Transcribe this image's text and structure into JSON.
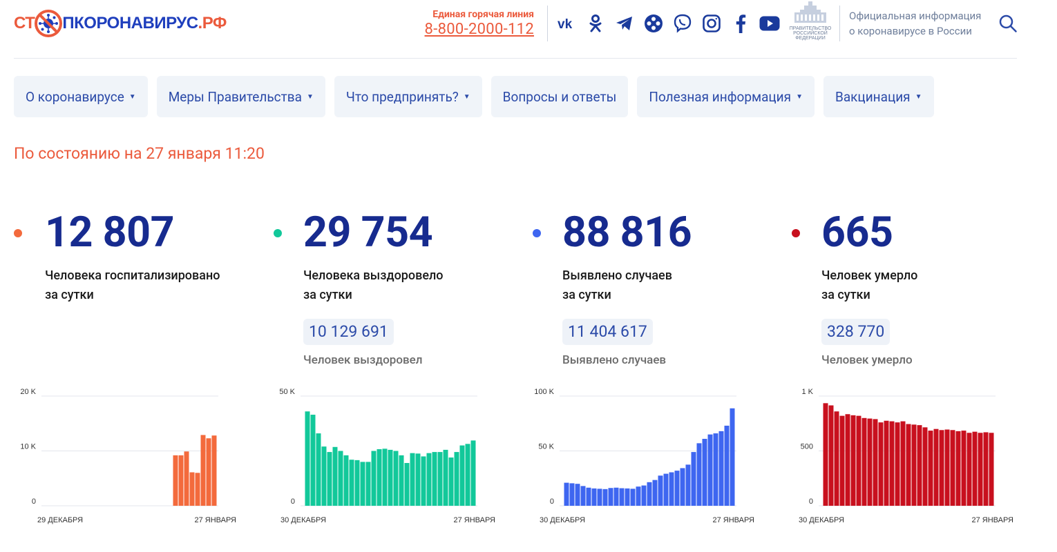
{
  "header": {
    "logo": {
      "part_red": "СТ",
      "part_blue": "ПКОРОНАВИРУС",
      "part_red_end": ".РФ"
    },
    "hotline": {
      "label": "Единая горячая линия",
      "phone": "8-800-2000-112"
    },
    "social_icons": [
      "vk-icon",
      "odnoklassniki-icon",
      "telegram-icon",
      "yandex-zen-icon",
      "viber-icon",
      "instagram-icon",
      "facebook-icon",
      "youtube-icon"
    ],
    "gov_logo_text": [
      "ПРАВИТЕЛЬСТВО",
      "РОССИЙСКОЙ",
      "ФЕДЕРАЦИИ"
    ],
    "official": {
      "line1": "Официальная информация",
      "line2": "о коронавирусе в России"
    }
  },
  "nav": {
    "items": [
      {
        "label": "О коронавирусе",
        "has_dropdown": true
      },
      {
        "label": "Меры Правительства",
        "has_dropdown": true
      },
      {
        "label": "Что предпринять?",
        "has_dropdown": true
      },
      {
        "label": "Вопросы и ответы",
        "has_dropdown": false
      },
      {
        "label": "Полезная информация",
        "has_dropdown": true
      },
      {
        "label": "Вакцинация",
        "has_dropdown": true
      }
    ]
  },
  "status": "По состоянию на 27 января 11:20",
  "stats": [
    {
      "value": "12 807",
      "desc1": "Человека госпитализировано",
      "desc2": "за сутки",
      "total": "",
      "total_label": ""
    },
    {
      "value": "29 754",
      "desc1": "Человека выздоровело",
      "desc2": "за сутки",
      "total": "10 129 691",
      "total_label": "Человек выздоровел"
    },
    {
      "value": "88 816",
      "desc1": "Выявлено случаев",
      "desc2": "за сутки",
      "total": "11 404 617",
      "total_label": "Выявлено случаев"
    },
    {
      "value": "665",
      "desc1": "Человек умерло",
      "desc2": "за сутки",
      "total": "328 770",
      "total_label": "Человек умерло"
    }
  ],
  "colors": {
    "hospitalized": "#f36a3c",
    "recovered": "#12c89a",
    "cases": "#3e66f0",
    "deaths": "#c8101e",
    "brand_red": "#eb5a3c",
    "brand_blue": "#172b8f"
  },
  "chart_data": [
    {
      "type": "bar",
      "ylim": [
        0,
        20000
      ],
      "ytick_labels": [
        "0",
        "10 K",
        "20 K"
      ],
      "x_start": "29 ДЕКАБРЯ",
      "x_end": "27 ЯНВАРЯ",
      "values": [
        0,
        0,
        0,
        0,
        0,
        0,
        0,
        0,
        0,
        0,
        0,
        0,
        0,
        0,
        0,
        0,
        0,
        0,
        0,
        0,
        0,
        0,
        0,
        9200,
        9200,
        9900,
        6100,
        6000,
        12900,
        12300,
        12807
      ]
    },
    {
      "type": "bar",
      "ylim": [
        0,
        50000
      ],
      "ytick_labels": [
        "0",
        "50 K"
      ],
      "x_start": "30 ДЕКАБРЯ",
      "x_end": "27 ЯНВАРЯ",
      "values": [
        43000,
        41500,
        33000,
        27000,
        24500,
        26800,
        25000,
        23000,
        21000,
        20800,
        20000,
        20000,
        25000,
        25800,
        26000,
        25500,
        25000,
        23000,
        19500,
        24000,
        23800,
        22500,
        24000,
        24500,
        24500,
        25500,
        22000,
        24500,
        27500,
        28200,
        29754
      ]
    },
    {
      "type": "bar",
      "ylim": [
        0,
        100000
      ],
      "ytick_labels": [
        "0",
        "50 K",
        "100 K"
      ],
      "x_start": "30 ДЕКАБРЯ",
      "x_end": "27 ЯНВАРЯ",
      "values": [
        21000,
        20500,
        20000,
        18000,
        16500,
        15800,
        15500,
        15200,
        16200,
        16500,
        16000,
        15800,
        15500,
        17500,
        18500,
        21500,
        23500,
        27500,
        29200,
        30500,
        32000,
        34300,
        37500,
        49000,
        57000,
        61000,
        65000,
        66000,
        68000,
        73000,
        88816
      ]
    },
    {
      "type": "bar",
      "ylim": [
        0,
        1000
      ],
      "ytick_labels": [
        "0",
        "500",
        "1 K"
      ],
      "x_start": "30 ДЕКАБРЯ",
      "x_end": "27 ЯНВАРЯ",
      "values": [
        935,
        915,
        860,
        820,
        835,
        825,
        820,
        800,
        795,
        790,
        760,
        775,
        770,
        760,
        770,
        745,
        740,
        735,
        715,
        685,
        700,
        690,
        695,
        690,
        680,
        685,
        665,
        675,
        665,
        670,
        665
      ]
    }
  ]
}
